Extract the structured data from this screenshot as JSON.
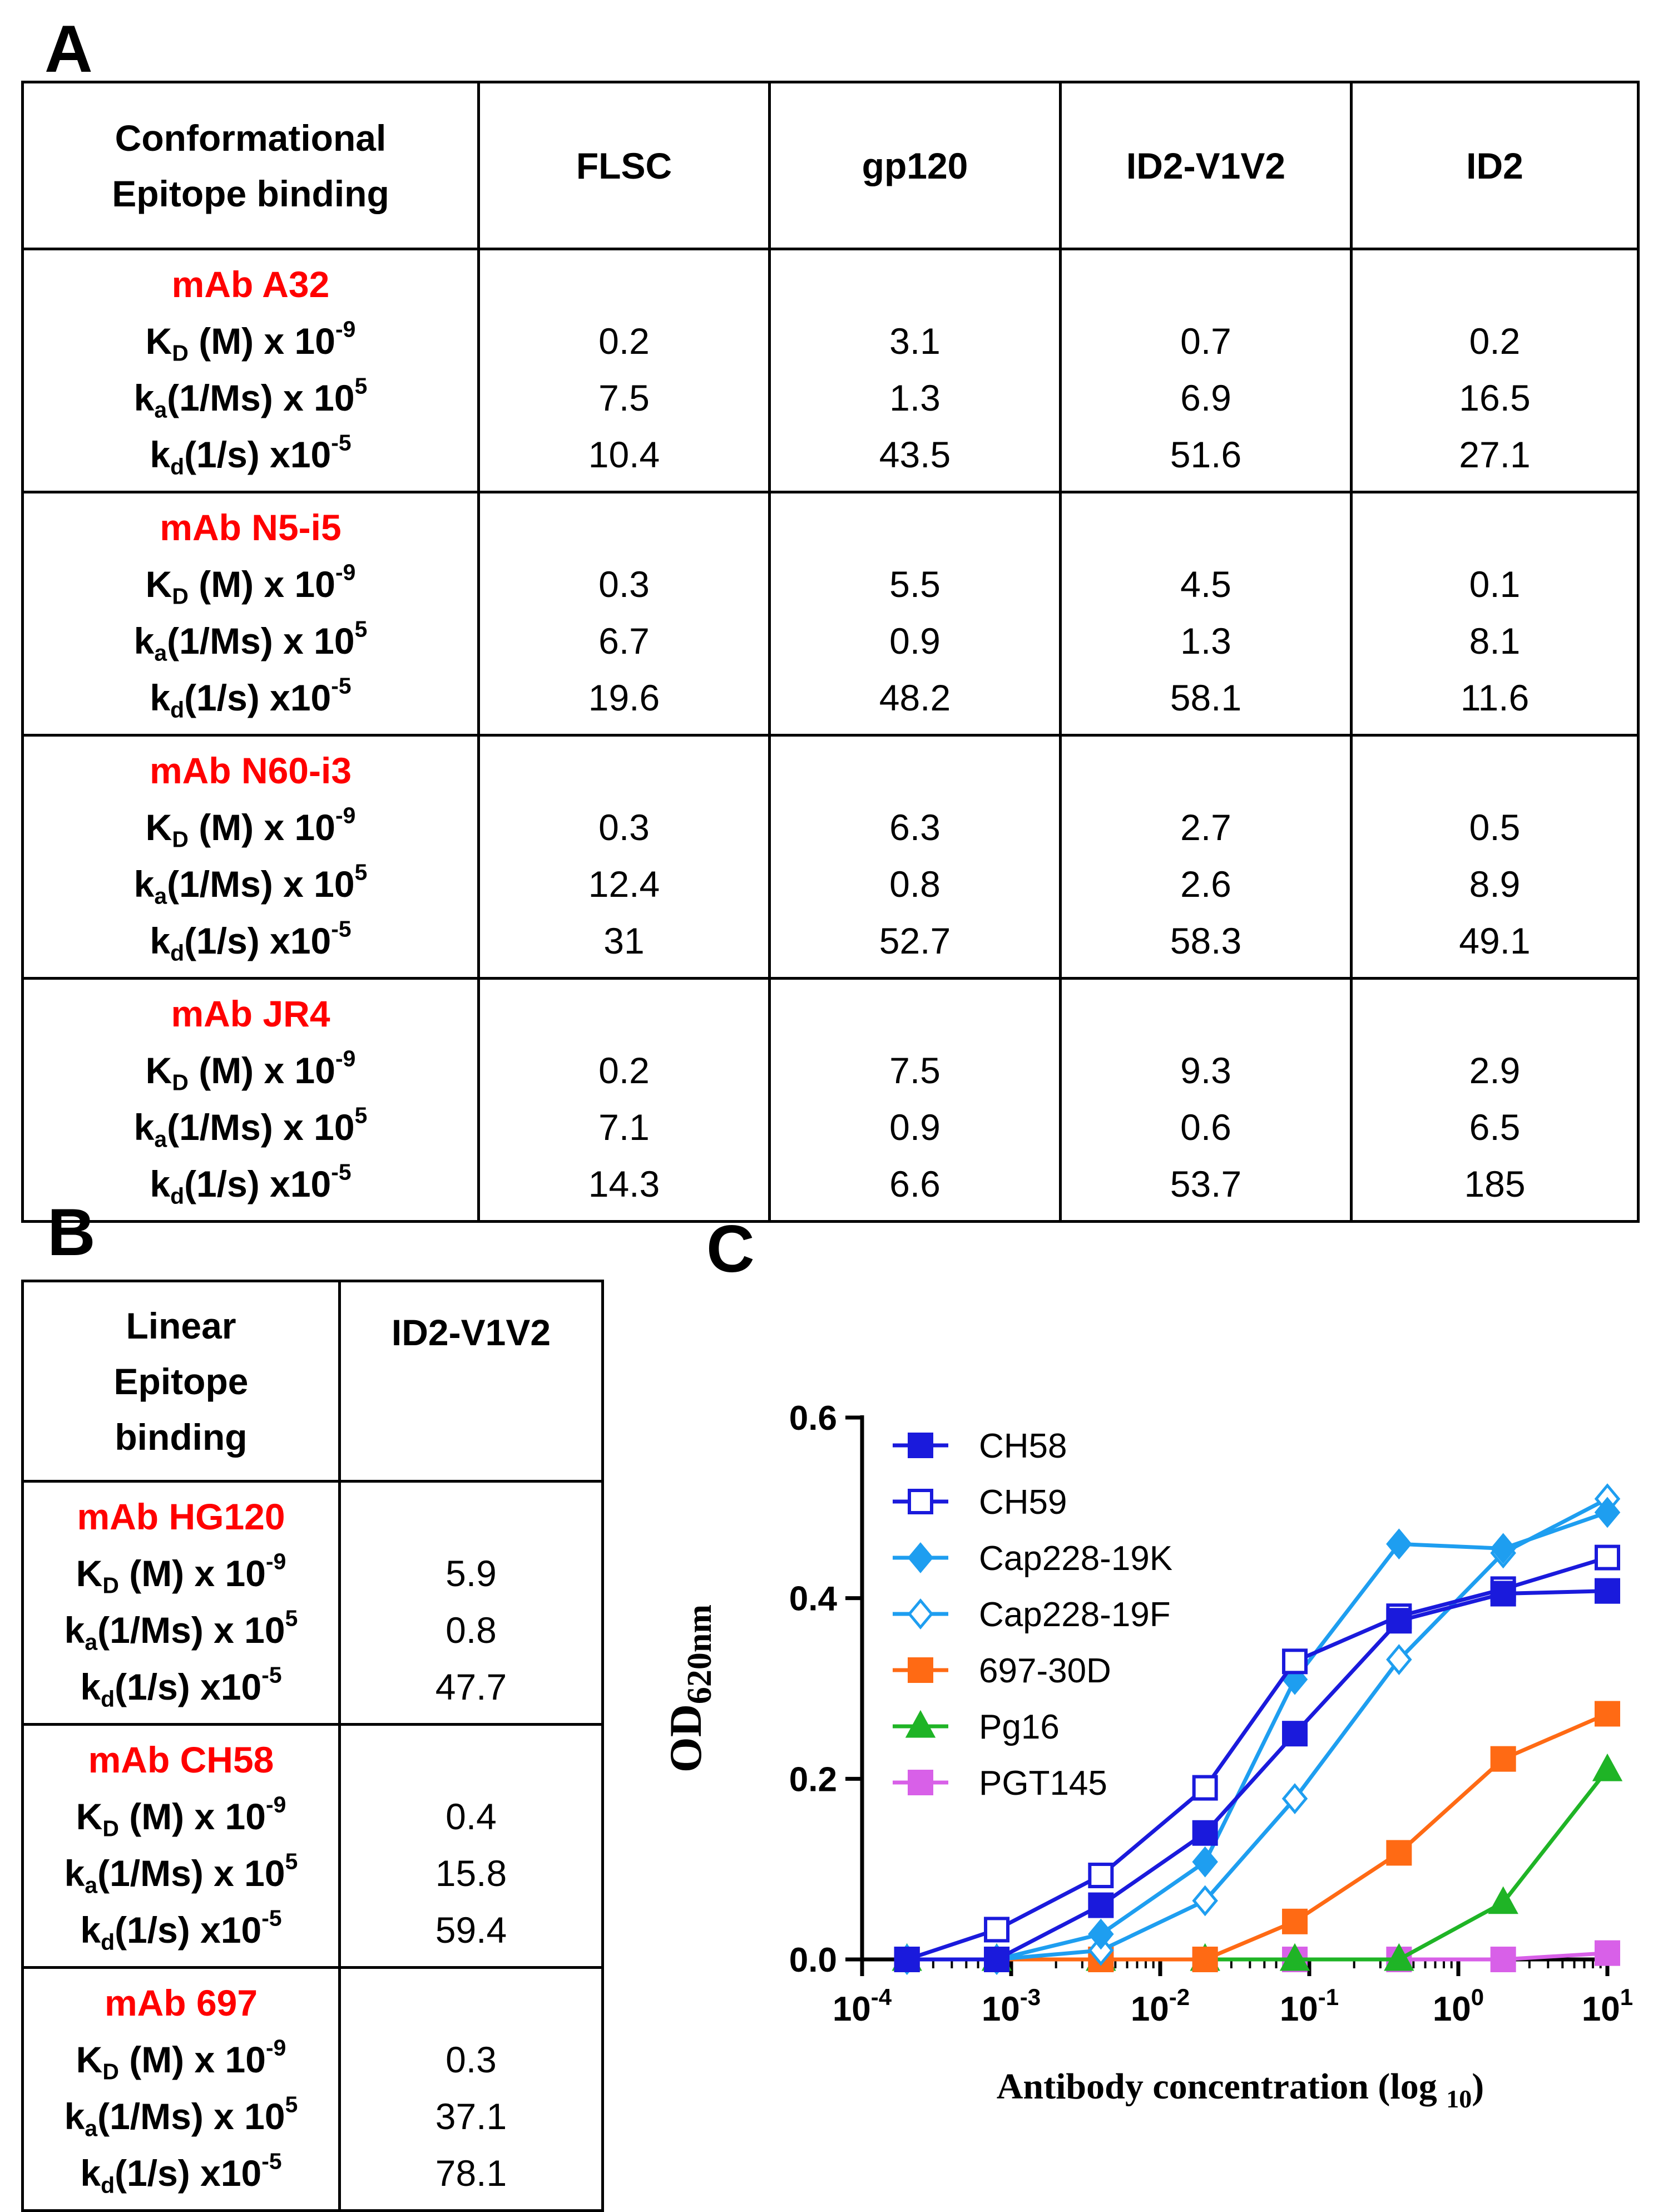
{
  "panel_a": {
    "letter": "A",
    "header": {
      "row_header": [
        "Conformational",
        "Epitope binding"
      ],
      "columns": [
        "FLSC",
        "gp120",
        "ID2-V1V2",
        "ID2"
      ]
    },
    "metric_labels": {
      "kd_M": {
        "base": "K",
        "sub": "D",
        "text": " (M) x 10",
        "sup": "-9"
      },
      "ka": {
        "base": "k",
        "sub": "a",
        "text": "(1/Ms) x 10",
        "sup": "5"
      },
      "kd_s": {
        "base": "k",
        "sub": "d",
        "text": "(1/s) x10",
        "sup": "-5"
      }
    },
    "groups": [
      {
        "antibody": "mAb A32",
        "kd_M": [
          "0.2",
          "3.1",
          "0.7",
          "0.2"
        ],
        "ka": [
          "7.5",
          "1.3",
          "6.9",
          "16.5"
        ],
        "kd_s": [
          "10.4",
          "43.5",
          "51.6",
          "27.1"
        ]
      },
      {
        "antibody": "mAb N5-i5",
        "kd_M": [
          "0.3",
          "5.5",
          "4.5",
          "0.1"
        ],
        "ka": [
          "6.7",
          "0.9",
          "1.3",
          "8.1"
        ],
        "kd_s": [
          "19.6",
          "48.2",
          "58.1",
          "11.6"
        ]
      },
      {
        "antibody": "mAb N60-i3",
        "kd_M": [
          "0.3",
          "6.3",
          "2.7",
          "0.5"
        ],
        "ka": [
          "12.4",
          "0.8",
          "2.6",
          "8.9"
        ],
        "kd_s": [
          "31",
          "52.7",
          "58.3",
          "49.1"
        ]
      },
      {
        "antibody": "mAb JR4",
        "kd_M": [
          "0.2",
          "7.5",
          "9.3",
          "2.9"
        ],
        "ka": [
          "7.1",
          "0.9",
          "0.6",
          "6.5"
        ],
        "kd_s": [
          "14.3",
          "6.6",
          "53.7",
          "185"
        ]
      }
    ]
  },
  "panel_b": {
    "letter": "B",
    "header": {
      "row_header": [
        "Linear",
        "Epitope",
        "binding"
      ],
      "column": "ID2-V1V2"
    },
    "groups": [
      {
        "antibody": "mAb HG120",
        "kd_M": "5.9",
        "ka": "0.8",
        "kd_s": "47.7"
      },
      {
        "antibody": "mAb CH58",
        "kd_M": "0.4",
        "ka": "15.8",
        "kd_s": "59.4"
      },
      {
        "antibody": "mAb 697",
        "kd_M": "0.3",
        "ka": "37.1",
        "kd_s": "78.1"
      }
    ]
  },
  "panel_c": {
    "letter": "C"
  },
  "chart_data": {
    "type": "line",
    "xscale": "log",
    "x": [
      0.0002,
      0.0008,
      0.004,
      0.02,
      0.08,
      0.4,
      2,
      10
    ],
    "xlim": [
      0.0001,
      10
    ],
    "ylim": [
      0,
      0.6
    ],
    "yticks": [
      0.0,
      0.2,
      0.4,
      0.6
    ],
    "ytick_labels": [
      "0.0",
      "0.2",
      "0.4",
      "0.6"
    ],
    "xticks": [
      {
        "value": 0.0001,
        "base": "10",
        "exp": "-4"
      },
      {
        "value": 0.001,
        "base": "10",
        "exp": "-3"
      },
      {
        "value": 0.01,
        "base": "10",
        "exp": "-2"
      },
      {
        "value": 0.1,
        "base": "10",
        "exp": "-1"
      },
      {
        "value": 1,
        "base": "10",
        "exp": "0"
      },
      {
        "value": 10,
        "base": "10",
        "exp": "1"
      }
    ],
    "ylabel": {
      "base": "OD",
      "sub": "620nm"
    },
    "xlabel": {
      "text": "Antibody concentration (log ",
      "sub": "10",
      "end": ")"
    },
    "legend_position": "top-left",
    "series": [
      {
        "name": "CH58",
        "color": "#1a1adc",
        "marker": "square",
        "filled": true,
        "values": [
          0.0,
          0.0,
          0.06,
          0.14,
          0.25,
          0.375,
          0.405,
          0.408
        ]
      },
      {
        "name": "CH59",
        "color": "#1a1adc",
        "marker": "square",
        "filled": false,
        "values": [
          0.0,
          0.033,
          0.093,
          0.19,
          0.33,
          0.38,
          0.41,
          0.445
        ]
      },
      {
        "name": "Cap228-19K",
        "color": "#1e9ef0",
        "marker": "diamond",
        "filled": true,
        "values": [
          0.0,
          0.0,
          0.028,
          0.108,
          0.31,
          0.46,
          0.455,
          0.495
        ]
      },
      {
        "name": "Cap228-19F",
        "color": "#1e9ef0",
        "marker": "diamond",
        "filled": false,
        "values": [
          0.0,
          0.0,
          0.01,
          0.065,
          0.178,
          0.332,
          0.45,
          0.51
        ]
      },
      {
        "name": "697-30D",
        "color": "#ff6a14",
        "marker": "square",
        "filled": true,
        "values": [
          0.0,
          0.0,
          0.0,
          0.0,
          0.042,
          0.118,
          0.222,
          0.272
        ]
      },
      {
        "name": "Pg16",
        "color": "#1fb426",
        "marker": "triangle",
        "filled": true,
        "values": [
          0.0,
          0.0,
          0.0,
          0.0,
          0.0,
          0.0,
          0.063,
          0.21
        ]
      },
      {
        "name": "PGT145",
        "color": "#d860e8",
        "marker": "square",
        "filled": true,
        "values": [
          0.0,
          0.0,
          0.0,
          0.0,
          0.0,
          0.0,
          0.0,
          0.007
        ]
      }
    ]
  }
}
